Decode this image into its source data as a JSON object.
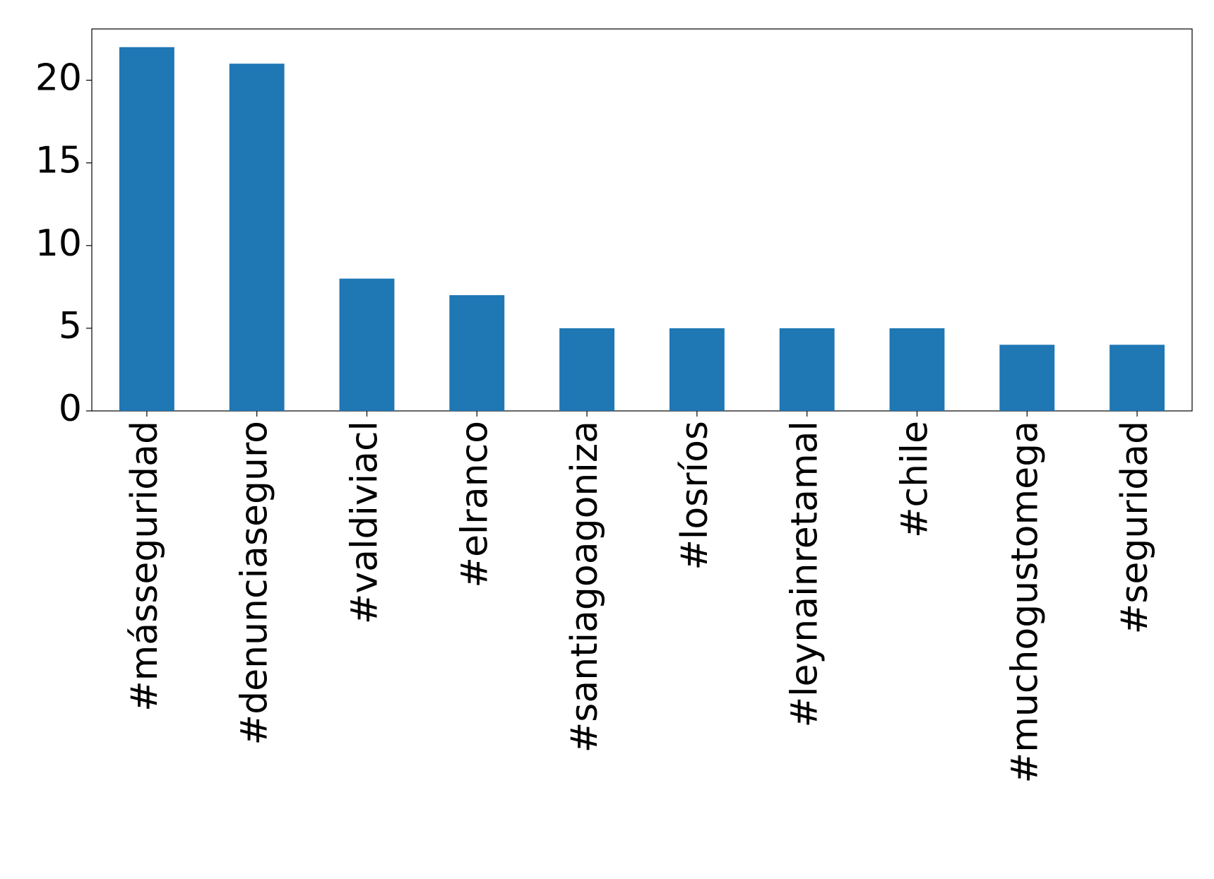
{
  "chart_data": {
    "type": "bar",
    "categories": [
      "#másseguridad",
      "#denunciaseguro",
      "#valdiviacl",
      "#elranco",
      "#santiagoagoniza",
      "#losríos",
      "#leynainretamal",
      "#chile",
      "#muchogustomega",
      "#seguridad"
    ],
    "values": [
      22,
      21,
      8,
      7,
      5,
      5,
      5,
      5,
      4,
      4
    ],
    "color": "#1f77b4",
    "ylim": [
      0,
      23.1
    ],
    "yticks": [
      0,
      5,
      10,
      15,
      20
    ],
    "grid": false
  }
}
